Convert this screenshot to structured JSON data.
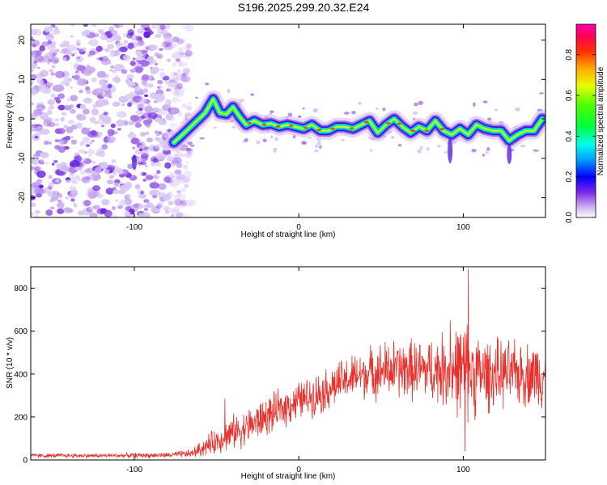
{
  "title": "S196.2025.299.20.32.E24",
  "chart_data": [
    {
      "type": "heatmap",
      "name": "spectrogram",
      "xlabel": "Height of straight line (km)",
      "ylabel": "Frequency (Hz)",
      "xlim": [
        -163,
        150
      ],
      "ylim": [
        -25,
        24
      ],
      "xticks": [
        -100,
        0,
        100
      ],
      "yticks": [
        -20,
        -10,
        0,
        10,
        20
      ],
      "xtick_labels": [
        "-100",
        "0",
        "100"
      ],
      "ytick_labels": [
        "-20",
        "-10",
        "0",
        "10",
        "20"
      ],
      "noise_region_x": [
        -163,
        -72
      ],
      "signal_ridge": {
        "x": [
          -76,
          -72,
          -67,
          -62,
          -57,
          -52,
          -48,
          -44,
          -40,
          -36,
          -32,
          -27,
          -22,
          -17,
          -12,
          -7,
          -2,
          3,
          8,
          13,
          18,
          23,
          28,
          33,
          38,
          43,
          48,
          53,
          58,
          63,
          68,
          73,
          78,
          83,
          88,
          93,
          98,
          103,
          108,
          113,
          118,
          123,
          128,
          133,
          138,
          143,
          148
        ],
        "y": [
          -6,
          -4.5,
          -2.5,
          -0.5,
          1.5,
          5,
          1.5,
          1.2,
          3,
          0.5,
          -1.5,
          -0.5,
          -1.5,
          -1.2,
          -2,
          -1.5,
          -2,
          -2.5,
          -1.5,
          -3,
          -3,
          -2,
          -2,
          -2.5,
          -1.5,
          -0.5,
          -3.5,
          -1.5,
          0,
          -2,
          -3.5,
          -2,
          -3,
          -0.5,
          -3,
          -4,
          -2.5,
          -4,
          -1.5,
          -2.5,
          -3,
          -3,
          -5.5,
          -4,
          -3,
          -3,
          0
        ]
      },
      "colorbar": {
        "label": "Normalized spectral amplitude",
        "ticks": [
          0.0,
          0.2,
          0.4,
          0.6,
          0.8
        ],
        "tick_labels": [
          "0.0",
          "0.2",
          "0.4",
          "0.6",
          "0.8"
        ],
        "range": [
          0,
          0.95
        ]
      }
    },
    {
      "type": "line",
      "name": "snr",
      "xlabel": "Height of straight line (km)",
      "ylabel": "SNR (10 * v/v)",
      "xlim": [
        -163,
        150
      ],
      "ylim": [
        0,
        900
      ],
      "xticks": [
        -100,
        0,
        100
      ],
      "yticks": [
        0,
        200,
        400,
        600,
        800
      ],
      "xtick_labels": [
        "-100",
        "0",
        "100"
      ],
      "ytick_labels": [
        "0",
        "200",
        "400",
        "600",
        "800"
      ],
      "color": "#e8312c",
      "envelope": {
        "x": [
          -163,
          -120,
          -80,
          -65,
          -55,
          -45,
          -40,
          -35,
          -25,
          -15,
          -5,
          5,
          15,
          25,
          35,
          45,
          55,
          65,
          75,
          85,
          95,
          100,
          105,
          110,
          120,
          130,
          140,
          150
        ],
        "mean": [
          20,
          20,
          22,
          30,
          70,
          110,
          130,
          140,
          180,
          220,
          260,
          290,
          320,
          360,
          390,
          410,
          420,
          420,
          420,
          420,
          420,
          420,
          410,
          400,
          400,
          400,
          400,
          400
        ],
        "spread": [
          10,
          10,
          12,
          20,
          50,
          70,
          80,
          80,
          90,
          90,
          90,
          90,
          100,
          100,
          110,
          120,
          140,
          140,
          140,
          160,
          200,
          240,
          220,
          180,
          160,
          150,
          150,
          160
        ]
      },
      "peaks": [
        {
          "x": -45,
          "y": 285
        },
        {
          "x": 92,
          "y": 650
        },
        {
          "x": 103,
          "y": 890
        },
        {
          "x": 101,
          "y": 40
        }
      ]
    }
  ]
}
